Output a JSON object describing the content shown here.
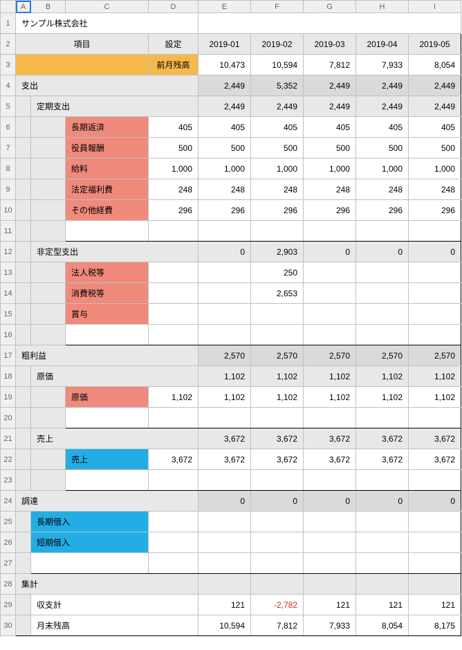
{
  "columns": [
    "A",
    "B",
    "C",
    "D",
    "E",
    "F",
    "G",
    "H",
    "I"
  ],
  "title": "サンプル株式会社",
  "header": {
    "item": "項目",
    "setting": "設定"
  },
  "months": [
    "2019-01",
    "2019-02",
    "2019-03",
    "2019-04",
    "2019-05"
  ],
  "prev_balance_label": "前月残高",
  "prev_balance": [
    "10,473",
    "10,594",
    "7,812",
    "7,933",
    "8,054"
  ],
  "expense": {
    "label": "支出",
    "totals": [
      "2,449",
      "5,352",
      "2,449",
      "2,449",
      "2,449"
    ],
    "fixed": {
      "label": "定期支出",
      "totals": [
        "2,449",
        "2,449",
        "2,449",
        "2,449",
        "2,449"
      ],
      "items": [
        {
          "label": "長期返済",
          "setting": "405",
          "vals": [
            "405",
            "405",
            "405",
            "405",
            "405"
          ]
        },
        {
          "label": "役員報酬",
          "setting": "500",
          "vals": [
            "500",
            "500",
            "500",
            "500",
            "500"
          ]
        },
        {
          "label": "給料",
          "setting": "1,000",
          "vals": [
            "1,000",
            "1,000",
            "1,000",
            "1,000",
            "1,000"
          ]
        },
        {
          "label": "法定福利費",
          "setting": "248",
          "vals": [
            "248",
            "248",
            "248",
            "248",
            "248"
          ]
        },
        {
          "label": "その他経費",
          "setting": "296",
          "vals": [
            "296",
            "296",
            "296",
            "296",
            "296"
          ]
        }
      ]
    },
    "variable": {
      "label": "非定型支出",
      "totals": [
        "0",
        "2,903",
        "0",
        "0",
        "0"
      ],
      "items": [
        {
          "label": "法人税等",
          "vals": [
            "",
            "250",
            "",
            "",
            ""
          ]
        },
        {
          "label": "消費税等",
          "vals": [
            "",
            "2,653",
            "",
            "",
            ""
          ]
        },
        {
          "label": "賞与",
          "vals": [
            "",
            "",
            "",
            "",
            ""
          ]
        }
      ]
    }
  },
  "gross": {
    "label": "粗利益",
    "totals": [
      "2,570",
      "2,570",
      "2,570",
      "2,570",
      "2,570"
    ],
    "cost": {
      "label": "原価",
      "totals": [
        "1,102",
        "1,102",
        "1,102",
        "1,102",
        "1,102"
      ],
      "item": {
        "label": "原価",
        "setting": "1,102",
        "vals": [
          "1,102",
          "1,102",
          "1,102",
          "1,102",
          "1,102"
        ]
      }
    },
    "sales": {
      "label": "売上",
      "totals": [
        "3,672",
        "3,672",
        "3,672",
        "3,672",
        "3,672"
      ],
      "item": {
        "label": "売上",
        "setting": "3,672",
        "vals": [
          "3,672",
          "3,672",
          "3,672",
          "3,672",
          "3,672"
        ]
      }
    }
  },
  "finance": {
    "label": "調達",
    "totals": [
      "0",
      "0",
      "0",
      "0",
      "0"
    ],
    "items": [
      {
        "label": "長期借入",
        "vals": [
          "",
          "",
          "",
          "",
          ""
        ]
      },
      {
        "label": "短期借入",
        "vals": [
          "",
          "",
          "",
          "",
          ""
        ]
      }
    ]
  },
  "summary": {
    "label": "集計",
    "balance": {
      "label": "収支計",
      "vals": [
        "121",
        "-2,782",
        "121",
        "121",
        "121"
      ],
      "neg": [
        false,
        true,
        false,
        false,
        false
      ]
    },
    "eom": {
      "label": "月末残高",
      "vals": [
        "10,594",
        "7,812",
        "7,933",
        "8,054",
        "8,175"
      ]
    }
  }
}
